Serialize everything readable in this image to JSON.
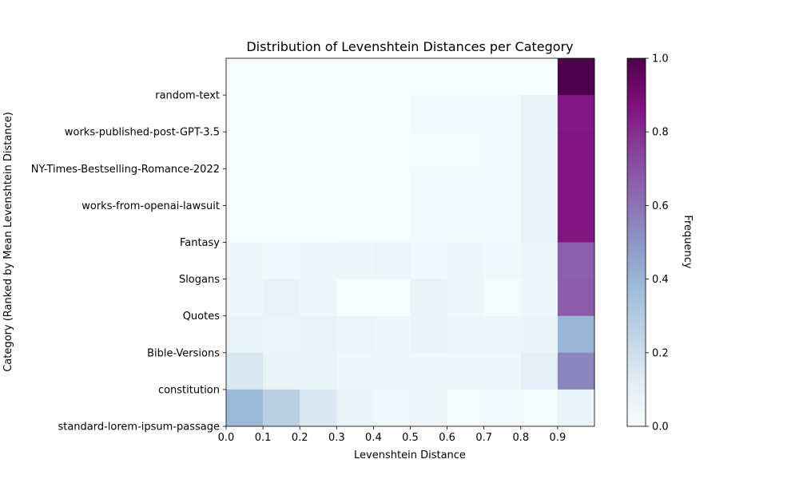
{
  "chart_data": {
    "type": "heatmap",
    "title": "Distribution of Levenshtein Distances per Category",
    "xlabel": "Levenshtein Distance",
    "ylabel": "Category (Ranked by Mean Levenshtein Distance)",
    "colorbar_label": "Frequency",
    "xlim": [
      0,
      1
    ],
    "x_ticks": [
      "0.0",
      "0.1",
      "0.2",
      "0.3",
      "0.4",
      "0.5",
      "0.6",
      "0.7",
      "0.8",
      "0.9"
    ],
    "color_ticks": [
      "0.0",
      "0.2",
      "0.4",
      "0.6",
      "0.8",
      "1.0"
    ],
    "color_range": [
      0,
      1
    ],
    "colormap": [
      "#f7fcfd",
      "#e0ecf4",
      "#bfd3e6",
      "#9ebcda",
      "#8c96c6",
      "#8c6bb1",
      "#88419d",
      "#810f7c",
      "#4d004b"
    ],
    "y_tick_labels": [
      "random-text",
      "works-published-post-GPT-3.5",
      "NY-Times-Bestselling-Romance-2022",
      "works-from-openai-lawsuit",
      "Fantasy",
      "Slogans",
      "Quotes",
      "Bible-Versions",
      "constitution",
      "standard-lorem-ipsum-passage"
    ],
    "rows": [
      [
        0.0,
        0.0,
        0.0,
        0.0,
        0.0,
        0.0,
        0.0,
        0.0,
        0.0,
        1.0
      ],
      [
        0.0,
        0.0,
        0.0,
        0.0,
        0.0,
        0.02,
        0.02,
        0.02,
        0.07,
        0.85
      ],
      [
        0.0,
        0.0,
        0.0,
        0.0,
        0.0,
        0.01,
        0.01,
        0.02,
        0.08,
        0.86
      ],
      [
        0.0,
        0.0,
        0.0,
        0.0,
        0.0,
        0.02,
        0.02,
        0.02,
        0.07,
        0.86
      ],
      [
        0.0,
        0.0,
        0.0,
        0.0,
        0.0,
        0.02,
        0.02,
        0.02,
        0.08,
        0.86
      ],
      [
        0.04,
        0.03,
        0.04,
        0.05,
        0.06,
        0.03,
        0.05,
        0.03,
        0.05,
        0.66
      ],
      [
        0.04,
        0.08,
        0.04,
        0.0,
        0.0,
        0.08,
        0.04,
        0.01,
        0.04,
        0.67
      ],
      [
        0.08,
        0.06,
        0.08,
        0.06,
        0.05,
        0.07,
        0.06,
        0.06,
        0.07,
        0.4
      ],
      [
        0.15,
        0.07,
        0.07,
        0.04,
        0.04,
        0.04,
        0.04,
        0.04,
        0.1,
        0.55
      ],
      [
        0.38,
        0.27,
        0.14,
        0.07,
        0.03,
        0.05,
        0.01,
        0.02,
        0.01,
        0.07
      ]
    ]
  }
}
